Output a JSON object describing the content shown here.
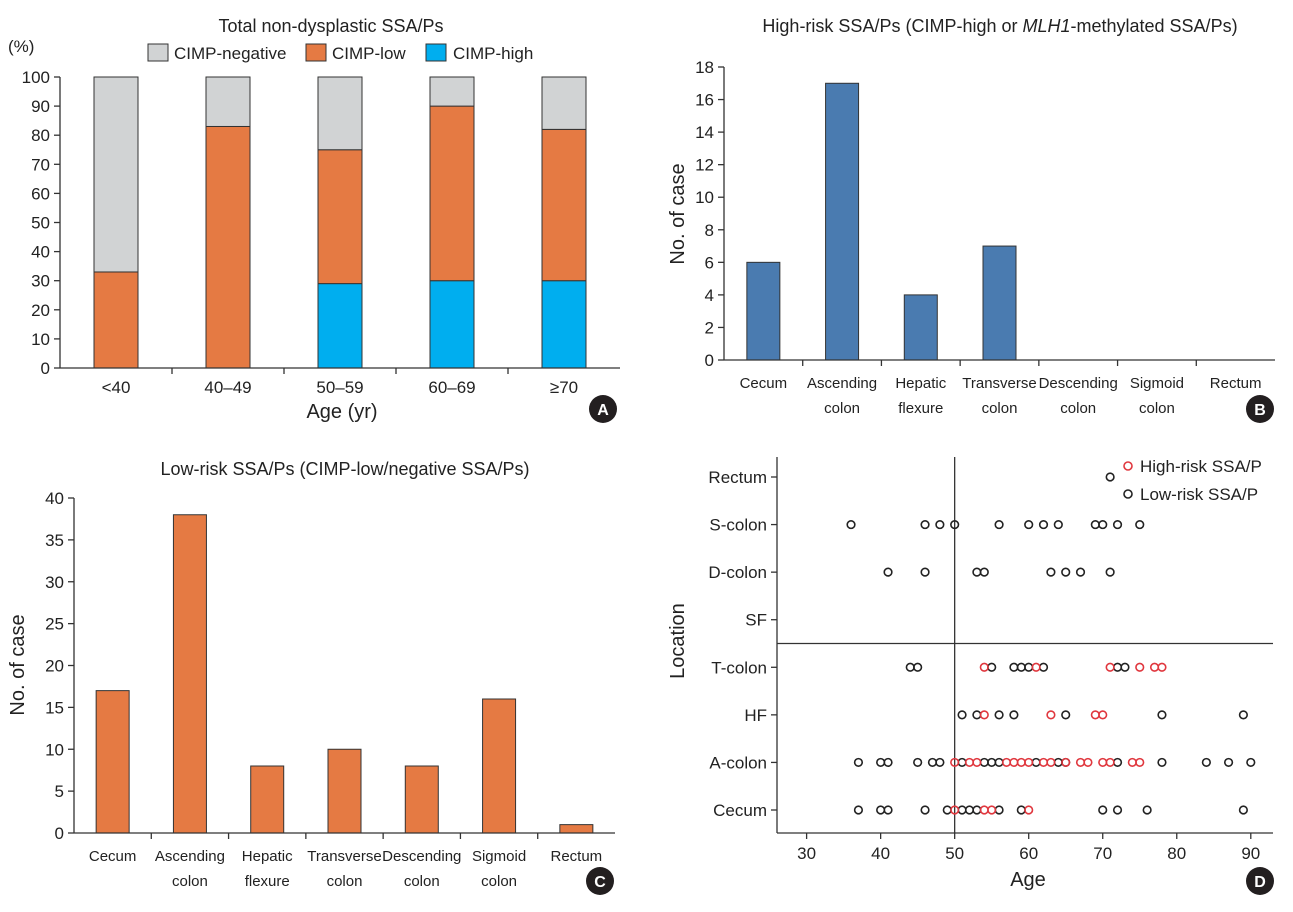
{
  "colors": {
    "cimp_negative": "#d1d3d4",
    "cimp_low": "#e57a43",
    "cimp_high": "#00aeef",
    "high_risk_bar": "#4a7bb0",
    "low_risk_bar": "#e57a43",
    "high_risk_point": "#e0373e",
    "low_risk_point": "#222222"
  },
  "chart_data": [
    {
      "panel": "A",
      "type": "bar",
      "stacked": true,
      "title": "Total non-dysplastic SSA/Ps",
      "xlabel": "Age (yr)",
      "ylabel": "(%)",
      "ylim": [
        0,
        100
      ],
      "yticks": [
        0,
        10,
        20,
        30,
        40,
        50,
        60,
        70,
        80,
        90,
        100
      ],
      "categories": [
        "<40",
        "40–49",
        "50–59",
        "60–69",
        "≥70"
      ],
      "series": [
        {
          "name": "CIMP-high",
          "values": [
            0,
            0,
            29,
            30,
            30
          ]
        },
        {
          "name": "CIMP-low",
          "values": [
            33,
            83,
            46,
            60,
            52
          ]
        },
        {
          "name": "CIMP-negative",
          "values": [
            67,
            17,
            25,
            10,
            18
          ]
        }
      ],
      "legend": [
        "CIMP-negative",
        "CIMP-low",
        "CIMP-high"
      ],
      "legend_position": "top"
    },
    {
      "panel": "B",
      "type": "bar",
      "title_pre": "High-risk SSA/Ps (CIMP-high or ",
      "title_em": "MLH1",
      "title_post": "-methylated SSA/Ps)",
      "ylabel": "No. of case",
      "ylim": [
        0,
        18
      ],
      "yticks": [
        0,
        2,
        4,
        6,
        8,
        10,
        12,
        14,
        16,
        18
      ],
      "categories": [
        [
          "Cecum"
        ],
        [
          "Ascending",
          "colon"
        ],
        [
          "Hepatic",
          "flexure"
        ],
        [
          "Transverse",
          "colon"
        ],
        [
          "Descending",
          "colon"
        ],
        [
          "Sigmoid",
          "colon"
        ],
        [
          "Rectum"
        ]
      ],
      "values": [
        6,
        17,
        4,
        7,
        0,
        0,
        0
      ]
    },
    {
      "panel": "C",
      "type": "bar",
      "title": "Low-risk SSA/Ps (CIMP-low/negative SSA/Ps)",
      "ylabel": "No. of case",
      "ylim": [
        0,
        40
      ],
      "yticks": [
        0,
        5,
        10,
        15,
        20,
        25,
        30,
        35,
        40
      ],
      "categories": [
        [
          "Cecum"
        ],
        [
          "Ascending",
          "colon"
        ],
        [
          "Hepatic",
          "flexure"
        ],
        [
          "Transverse",
          "colon"
        ],
        [
          "Descending",
          "colon"
        ],
        [
          "Sigmoid",
          "colon"
        ],
        [
          "Rectum"
        ]
      ],
      "values": [
        17,
        38,
        8,
        10,
        8,
        16,
        1
      ]
    },
    {
      "panel": "D",
      "type": "scatter",
      "xlabel": "Age",
      "ylabel": "Location",
      "xlim": [
        26,
        93
      ],
      "xticks": [
        30,
        40,
        50,
        60,
        70,
        80,
        90
      ],
      "locations": [
        "Cecum",
        "A-colon",
        "HF",
        "T-colon",
        "SF",
        "D-colon",
        "S-colon",
        "Rectum"
      ],
      "reference_age": 50,
      "reference_between": [
        "SF",
        "T-colon"
      ],
      "legend": [
        "High-risk SSA/P",
        "Low-risk SSA/P"
      ],
      "legend_position": "top-right",
      "high_risk": {
        "Cecum": [
          50,
          54,
          55,
          60
        ],
        "A-colon": [
          50,
          52,
          53,
          57,
          58,
          59,
          60,
          62,
          63,
          65,
          67,
          68,
          70,
          71,
          74,
          75
        ],
        "HF": [
          54,
          63,
          69,
          70
        ],
        "T-colon": [
          54,
          61,
          71,
          75,
          77,
          78
        ],
        "SF": [],
        "D-colon": [],
        "S-colon": [],
        "Rectum": []
      },
      "low_risk": {
        "Cecum": [
          37,
          40,
          41,
          46,
          49,
          51,
          52,
          53,
          56,
          59,
          70,
          72,
          76,
          89
        ],
        "A-colon": [
          37,
          40,
          41,
          45,
          47,
          48,
          51,
          54,
          55,
          56,
          61,
          64,
          65,
          72,
          78,
          84,
          87,
          90
        ],
        "HF": [
          51,
          53,
          56,
          58,
          65,
          78,
          89
        ],
        "T-colon": [
          44,
          45,
          55,
          58,
          59,
          60,
          62,
          72,
          73
        ],
        "SF": [],
        "D-colon": [
          41,
          46,
          53,
          54,
          63,
          65,
          67,
          71
        ],
        "S-colon": [
          36,
          46,
          48,
          50,
          56,
          60,
          62,
          64,
          69,
          70,
          72,
          75
        ],
        "Rectum": [
          71
        ]
      }
    }
  ]
}
